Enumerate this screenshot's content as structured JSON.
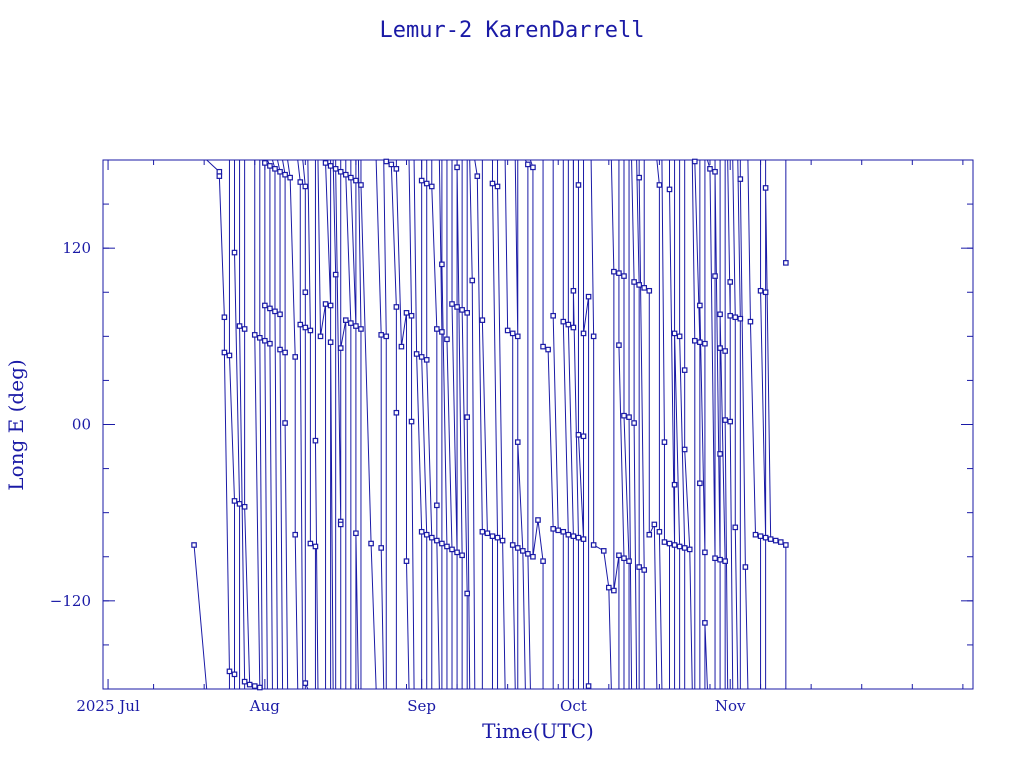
{
  "chart_data": {
    "type": "line",
    "title": "Lemur-2 KarenDarrell",
    "xlabel": "Time(UTC)",
    "ylabel": "Long E (deg)",
    "xlim": [
      "2025-06-30",
      "2025-12-19"
    ],
    "ylim": [
      -180,
      180
    ],
    "x_ticks": [
      {
        "label": "2025 Jul",
        "date": "2025-07-01"
      },
      {
        "label": "Aug",
        "date": "2025-08-01"
      },
      {
        "label": "Sep",
        "date": "2025-09-01"
      },
      {
        "label": "Oct",
        "date": "2025-10-01"
      },
      {
        "label": "Nov",
        "date": "2025-11-01"
      }
    ],
    "y_ticks": [
      {
        "label": "−120",
        "value": -120
      },
      {
        "label": "00",
        "value": 0
      },
      {
        "label": "120",
        "value": 120
      }
    ],
    "grid": false,
    "points": [
      {
        "x": "2025-07-18",
        "y": -82
      },
      {
        "x": "2025-07-23",
        "y": 172
      },
      {
        "x": "2025-07-23",
        "y": 169
      },
      {
        "x": "2025-07-24",
        "y": 73
      },
      {
        "x": "2025-07-24",
        "y": 49
      },
      {
        "x": "2025-07-25",
        "y": -168
      },
      {
        "x": "2025-07-25",
        "y": 47
      },
      {
        "x": "2025-07-26",
        "y": -52
      },
      {
        "x": "2025-07-26",
        "y": -170
      },
      {
        "x": "2025-07-26",
        "y": 117
      },
      {
        "x": "2025-07-27",
        "y": -54
      },
      {
        "x": "2025-07-27",
        "y": 67
      },
      {
        "x": "2025-07-28",
        "y": -175
      },
      {
        "x": "2025-07-28",
        "y": 65
      },
      {
        "x": "2025-07-28",
        "y": -56
      },
      {
        "x": "2025-07-29",
        "y": -177
      },
      {
        "x": "2025-07-30",
        "y": -178
      },
      {
        "x": "2025-07-30",
        "y": 61
      },
      {
        "x": "2025-07-31",
        "y": -179
      },
      {
        "x": "2025-07-31",
        "y": 59
      },
      {
        "x": "2025-08-01",
        "y": 178
      },
      {
        "x": "2025-08-01",
        "y": 81
      },
      {
        "x": "2025-08-01",
        "y": 57
      },
      {
        "x": "2025-08-02",
        "y": 176
      },
      {
        "x": "2025-08-02",
        "y": 79
      },
      {
        "x": "2025-08-02",
        "y": 55
      },
      {
        "x": "2025-08-03",
        "y": 174
      },
      {
        "x": "2025-08-03",
        "y": 77
      },
      {
        "x": "2025-08-04",
        "y": 172
      },
      {
        "x": "2025-08-04",
        "y": 75
      },
      {
        "x": "2025-08-04",
        "y": 51
      },
      {
        "x": "2025-08-05",
        "y": 170
      },
      {
        "x": "2025-08-05",
        "y": 49
      },
      {
        "x": "2025-08-05",
        "y": 1
      },
      {
        "x": "2025-08-06",
        "y": 168
      },
      {
        "x": "2025-08-07",
        "y": 46
      },
      {
        "x": "2025-08-07",
        "y": -75
      },
      {
        "x": "2025-08-08",
        "y": 165
      },
      {
        "x": "2025-08-08",
        "y": 68
      },
      {
        "x": "2025-08-09",
        "y": 162
      },
      {
        "x": "2025-08-09",
        "y": 66
      },
      {
        "x": "2025-08-09",
        "y": 90
      },
      {
        "x": "2025-08-09",
        "y": -176
      },
      {
        "x": "2025-08-10",
        "y": 64
      },
      {
        "x": "2025-08-10",
        "y": -81
      },
      {
        "x": "2025-08-11",
        "y": -83
      },
      {
        "x": "2025-08-11",
        "y": -11
      },
      {
        "x": "2025-08-12",
        "y": 60
      },
      {
        "x": "2025-08-13",
        "y": 82
      },
      {
        "x": "2025-08-13",
        "y": 178
      },
      {
        "x": "2025-08-14",
        "y": 81
      },
      {
        "x": "2025-08-14",
        "y": 176
      },
      {
        "x": "2025-08-14",
        "y": 56
      },
      {
        "x": "2025-08-15",
        "y": 102
      },
      {
        "x": "2025-08-15",
        "y": 174
      },
      {
        "x": "2025-08-16",
        "y": -66
      },
      {
        "x": "2025-08-16",
        "y": 172
      },
      {
        "x": "2025-08-16",
        "y": -68
      },
      {
        "x": "2025-08-16",
        "y": 52
      },
      {
        "x": "2025-08-17",
        "y": 71
      },
      {
        "x": "2025-08-17",
        "y": 170
      },
      {
        "x": "2025-08-18",
        "y": 69
      },
      {
        "x": "2025-08-18",
        "y": 168
      },
      {
        "x": "2025-08-19",
        "y": 67
      },
      {
        "x": "2025-08-19",
        "y": 166
      },
      {
        "x": "2025-08-19",
        "y": -74
      },
      {
        "x": "2025-08-20",
        "y": 65
      },
      {
        "x": "2025-08-20",
        "y": 163
      },
      {
        "x": "2025-08-22",
        "y": -81
      },
      {
        "x": "2025-08-24",
        "y": 61
      },
      {
        "x": "2025-08-24",
        "y": -84
      },
      {
        "x": "2025-08-25",
        "y": 60
      },
      {
        "x": "2025-08-25",
        "y": 179
      },
      {
        "x": "2025-08-26",
        "y": 177
      },
      {
        "x": "2025-08-27",
        "y": 80
      },
      {
        "x": "2025-08-27",
        "y": 8
      },
      {
        "x": "2025-08-27",
        "y": 174
      },
      {
        "x": "2025-08-28",
        "y": 53
      },
      {
        "x": "2025-08-29",
        "y": 76
      },
      {
        "x": "2025-08-29",
        "y": -93
      },
      {
        "x": "2025-08-30",
        "y": 74
      },
      {
        "x": "2025-08-30",
        "y": 2
      },
      {
        "x": "2025-08-31",
        "y": 48
      },
      {
        "x": "2025-09-01",
        "y": -73
      },
      {
        "x": "2025-09-01",
        "y": 166
      },
      {
        "x": "2025-09-01",
        "y": 46
      },
      {
        "x": "2025-09-02",
        "y": -75
      },
      {
        "x": "2025-09-02",
        "y": 164
      },
      {
        "x": "2025-09-02",
        "y": 44
      },
      {
        "x": "2025-09-03",
        "y": -77
      },
      {
        "x": "2025-09-03",
        "y": 162
      },
      {
        "x": "2025-09-04",
        "y": 65
      },
      {
        "x": "2025-09-04",
        "y": -55
      },
      {
        "x": "2025-09-04",
        "y": -79
      },
      {
        "x": "2025-09-05",
        "y": 63
      },
      {
        "x": "2025-09-05",
        "y": -81
      },
      {
        "x": "2025-09-05",
        "y": 109
      },
      {
        "x": "2025-09-06",
        "y": -83
      },
      {
        "x": "2025-09-06",
        "y": 58
      },
      {
        "x": "2025-09-07",
        "y": -85
      },
      {
        "x": "2025-09-07",
        "y": 82
      },
      {
        "x": "2025-09-08",
        "y": -87
      },
      {
        "x": "2025-09-08",
        "y": 80
      },
      {
        "x": "2025-09-08",
        "y": 175
      },
      {
        "x": "2025-09-09",
        "y": -89
      },
      {
        "x": "2025-09-09",
        "y": 78
      },
      {
        "x": "2025-09-10",
        "y": -115
      },
      {
        "x": "2025-09-10",
        "y": 76
      },
      {
        "x": "2025-09-10",
        "y": 5
      },
      {
        "x": "2025-09-11",
        "y": 98
      },
      {
        "x": "2025-09-12",
        "y": 169
      },
      {
        "x": "2025-09-13",
        "y": -73
      },
      {
        "x": "2025-09-13",
        "y": 71
      },
      {
        "x": "2025-09-14",
        "y": -74
      },
      {
        "x": "2025-09-15",
        "y": -76
      },
      {
        "x": "2025-09-15",
        "y": 164
      },
      {
        "x": "2025-09-16",
        "y": -77
      },
      {
        "x": "2025-09-16",
        "y": 162
      },
      {
        "x": "2025-09-17",
        "y": -79
      },
      {
        "x": "2025-09-18",
        "y": 64
      },
      {
        "x": "2025-09-19",
        "y": 62
      },
      {
        "x": "2025-09-19",
        "y": -82
      },
      {
        "x": "2025-09-20",
        "y": 60
      },
      {
        "x": "2025-09-20",
        "y": -84
      },
      {
        "x": "2025-09-20",
        "y": -12
      },
      {
        "x": "2025-09-21",
        "y": -86
      },
      {
        "x": "2025-09-22",
        "y": 177
      },
      {
        "x": "2025-09-22",
        "y": -88
      },
      {
        "x": "2025-09-23",
        "y": 175
      },
      {
        "x": "2025-09-23",
        "y": -90
      },
      {
        "x": "2025-09-24",
        "y": -65
      },
      {
        "x": "2025-09-25",
        "y": -93
      },
      {
        "x": "2025-09-25",
        "y": 53
      },
      {
        "x": "2025-09-26",
        "y": 51
      },
      {
        "x": "2025-09-27",
        "y": -71
      },
      {
        "x": "2025-09-27",
        "y": 74
      },
      {
        "x": "2025-09-28",
        "y": -72
      },
      {
        "x": "2025-09-29",
        "y": -73
      },
      {
        "x": "2025-09-29",
        "y": 70
      },
      {
        "x": "2025-09-30",
        "y": -75
      },
      {
        "x": "2025-09-30",
        "y": 68
      },
      {
        "x": "2025-10-01",
        "y": -76
      },
      {
        "x": "2025-10-01",
        "y": 66
      },
      {
        "x": "2025-10-01",
        "y": 91
      },
      {
        "x": "2025-10-02",
        "y": -77
      },
      {
        "x": "2025-10-02",
        "y": 163
      },
      {
        "x": "2025-10-02",
        "y": -7
      },
      {
        "x": "2025-10-03",
        "y": -78
      },
      {
        "x": "2025-10-03",
        "y": -8
      },
      {
        "x": "2025-10-03",
        "y": 62
      },
      {
        "x": "2025-10-04",
        "y": 87
      },
      {
        "x": "2025-10-04",
        "y": -178
      },
      {
        "x": "2025-10-05",
        "y": 60
      },
      {
        "x": "2025-10-05",
        "y": -82
      },
      {
        "x": "2025-10-07",
        "y": -86
      },
      {
        "x": "2025-10-08",
        "y": -111
      },
      {
        "x": "2025-10-09",
        "y": 104
      },
      {
        "x": "2025-10-09",
        "y": -113
      },
      {
        "x": "2025-10-10",
        "y": -89
      },
      {
        "x": "2025-10-10",
        "y": 103
      },
      {
        "x": "2025-10-10",
        "y": 54
      },
      {
        "x": "2025-10-11",
        "y": -91
      },
      {
        "x": "2025-10-11",
        "y": 101
      },
      {
        "x": "2025-10-11",
        "y": 6
      },
      {
        "x": "2025-10-12",
        "y": -93
      },
      {
        "x": "2025-10-12",
        "y": 5
      },
      {
        "x": "2025-10-13",
        "y": 97
      },
      {
        "x": "2025-10-13",
        "y": 1
      },
      {
        "x": "2025-10-14",
        "y": 95
      },
      {
        "x": "2025-10-14",
        "y": -97
      },
      {
        "x": "2025-10-14",
        "y": 168
      },
      {
        "x": "2025-10-15",
        "y": -99
      },
      {
        "x": "2025-10-15",
        "y": 93
      },
      {
        "x": "2025-10-16",
        "y": 91
      },
      {
        "x": "2025-10-16",
        "y": -75
      },
      {
        "x": "2025-10-17",
        "y": -68
      },
      {
        "x": "2025-10-18",
        "y": 163
      },
      {
        "x": "2025-10-18",
        "y": -73
      },
      {
        "x": "2025-10-19",
        "y": -12
      },
      {
        "x": "2025-10-19",
        "y": -80
      },
      {
        "x": "2025-10-20",
        "y": -81
      },
      {
        "x": "2025-10-20",
        "y": 160
      },
      {
        "x": "2025-10-21",
        "y": -82
      },
      {
        "x": "2025-10-21",
        "y": -41
      },
      {
        "x": "2025-10-21",
        "y": 62
      },
      {
        "x": "2025-10-22",
        "y": -83
      },
      {
        "x": "2025-10-22",
        "y": 60
      },
      {
        "x": "2025-10-23",
        "y": -84
      },
      {
        "x": "2025-10-23",
        "y": 37
      },
      {
        "x": "2025-10-23",
        "y": -17
      },
      {
        "x": "2025-10-24",
        "y": -85
      },
      {
        "x": "2025-10-25",
        "y": 57
      },
      {
        "x": "2025-10-25",
        "y": 179
      },
      {
        "x": "2025-10-26",
        "y": 56
      },
      {
        "x": "2025-10-26",
        "y": -40
      },
      {
        "x": "2025-10-26",
        "y": 81
      },
      {
        "x": "2025-10-27",
        "y": -87
      },
      {
        "x": "2025-10-27",
        "y": 55
      },
      {
        "x": "2025-10-27",
        "y": -135
      },
      {
        "x": "2025-10-28",
        "y": 174
      },
      {
        "x": "2025-10-29",
        "y": -91
      },
      {
        "x": "2025-10-29",
        "y": 101
      },
      {
        "x": "2025-10-29",
        "y": 172
      },
      {
        "x": "2025-10-30",
        "y": -92
      },
      {
        "x": "2025-10-30",
        "y": 52
      },
      {
        "x": "2025-10-30",
        "y": -20
      },
      {
        "x": "2025-10-30",
        "y": 75
      },
      {
        "x": "2025-10-31",
        "y": -93
      },
      {
        "x": "2025-10-31",
        "y": 50
      },
      {
        "x": "2025-10-31",
        "y": 3
      },
      {
        "x": "2025-11-01",
        "y": 74
      },
      {
        "x": "2025-11-01",
        "y": 97
      },
      {
        "x": "2025-11-01",
        "y": 2
      },
      {
        "x": "2025-11-02",
        "y": 73
      },
      {
        "x": "2025-11-02",
        "y": -70
      },
      {
        "x": "2025-11-03",
        "y": 72
      },
      {
        "x": "2025-11-03",
        "y": 167
      },
      {
        "x": "2025-11-04",
        "y": -97
      },
      {
        "x": "2025-11-05",
        "y": 70
      },
      {
        "x": "2025-11-06",
        "y": -75
      },
      {
        "x": "2025-11-07",
        "y": -76
      },
      {
        "x": "2025-11-07",
        "y": 91
      },
      {
        "x": "2025-11-08",
        "y": -77
      },
      {
        "x": "2025-11-08",
        "y": 90
      },
      {
        "x": "2025-11-08",
        "y": 161
      },
      {
        "x": "2025-11-09",
        "y": -78
      },
      {
        "x": "2025-11-10",
        "y": -79
      },
      {
        "x": "2025-11-11",
        "y": -80
      },
      {
        "x": "2025-11-12",
        "y": -82
      },
      {
        "x": "2025-11-12",
        "y": 110
      }
    ]
  }
}
